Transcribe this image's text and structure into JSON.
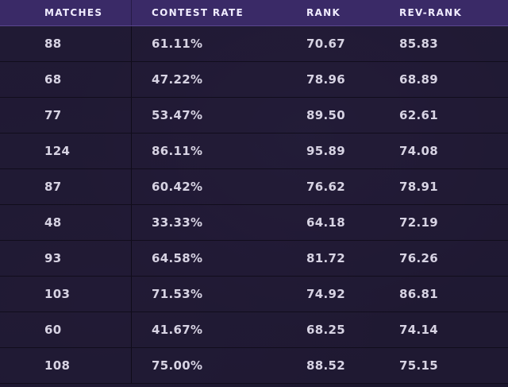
{
  "table": {
    "columns": [
      "MATCHES",
      "CONTEST RATE",
      "RANK",
      "REV-RANK"
    ],
    "rows": [
      [
        "88",
        "61.11%",
        "70.67",
        "85.83"
      ],
      [
        "68",
        "47.22%",
        "78.96",
        "68.89"
      ],
      [
        "77",
        "53.47%",
        "89.50",
        "62.61"
      ],
      [
        "124",
        "86.11%",
        "95.89",
        "74.08"
      ],
      [
        "87",
        "60.42%",
        "76.62",
        "78.91"
      ],
      [
        "48",
        "33.33%",
        "64.18",
        "72.19"
      ],
      [
        "93",
        "64.58%",
        "81.72",
        "76.26"
      ],
      [
        "103",
        "71.53%",
        "74.92",
        "86.81"
      ],
      [
        "60",
        "41.67%",
        "68.25",
        "74.14"
      ],
      [
        "108",
        "75.00%",
        "88.52",
        "75.15"
      ]
    ]
  },
  "colors": {
    "header_bg": "#3a2a67",
    "row_bg": "#211a34",
    "text": "#d7d3e3",
    "header_text": "#f0ecff"
  }
}
